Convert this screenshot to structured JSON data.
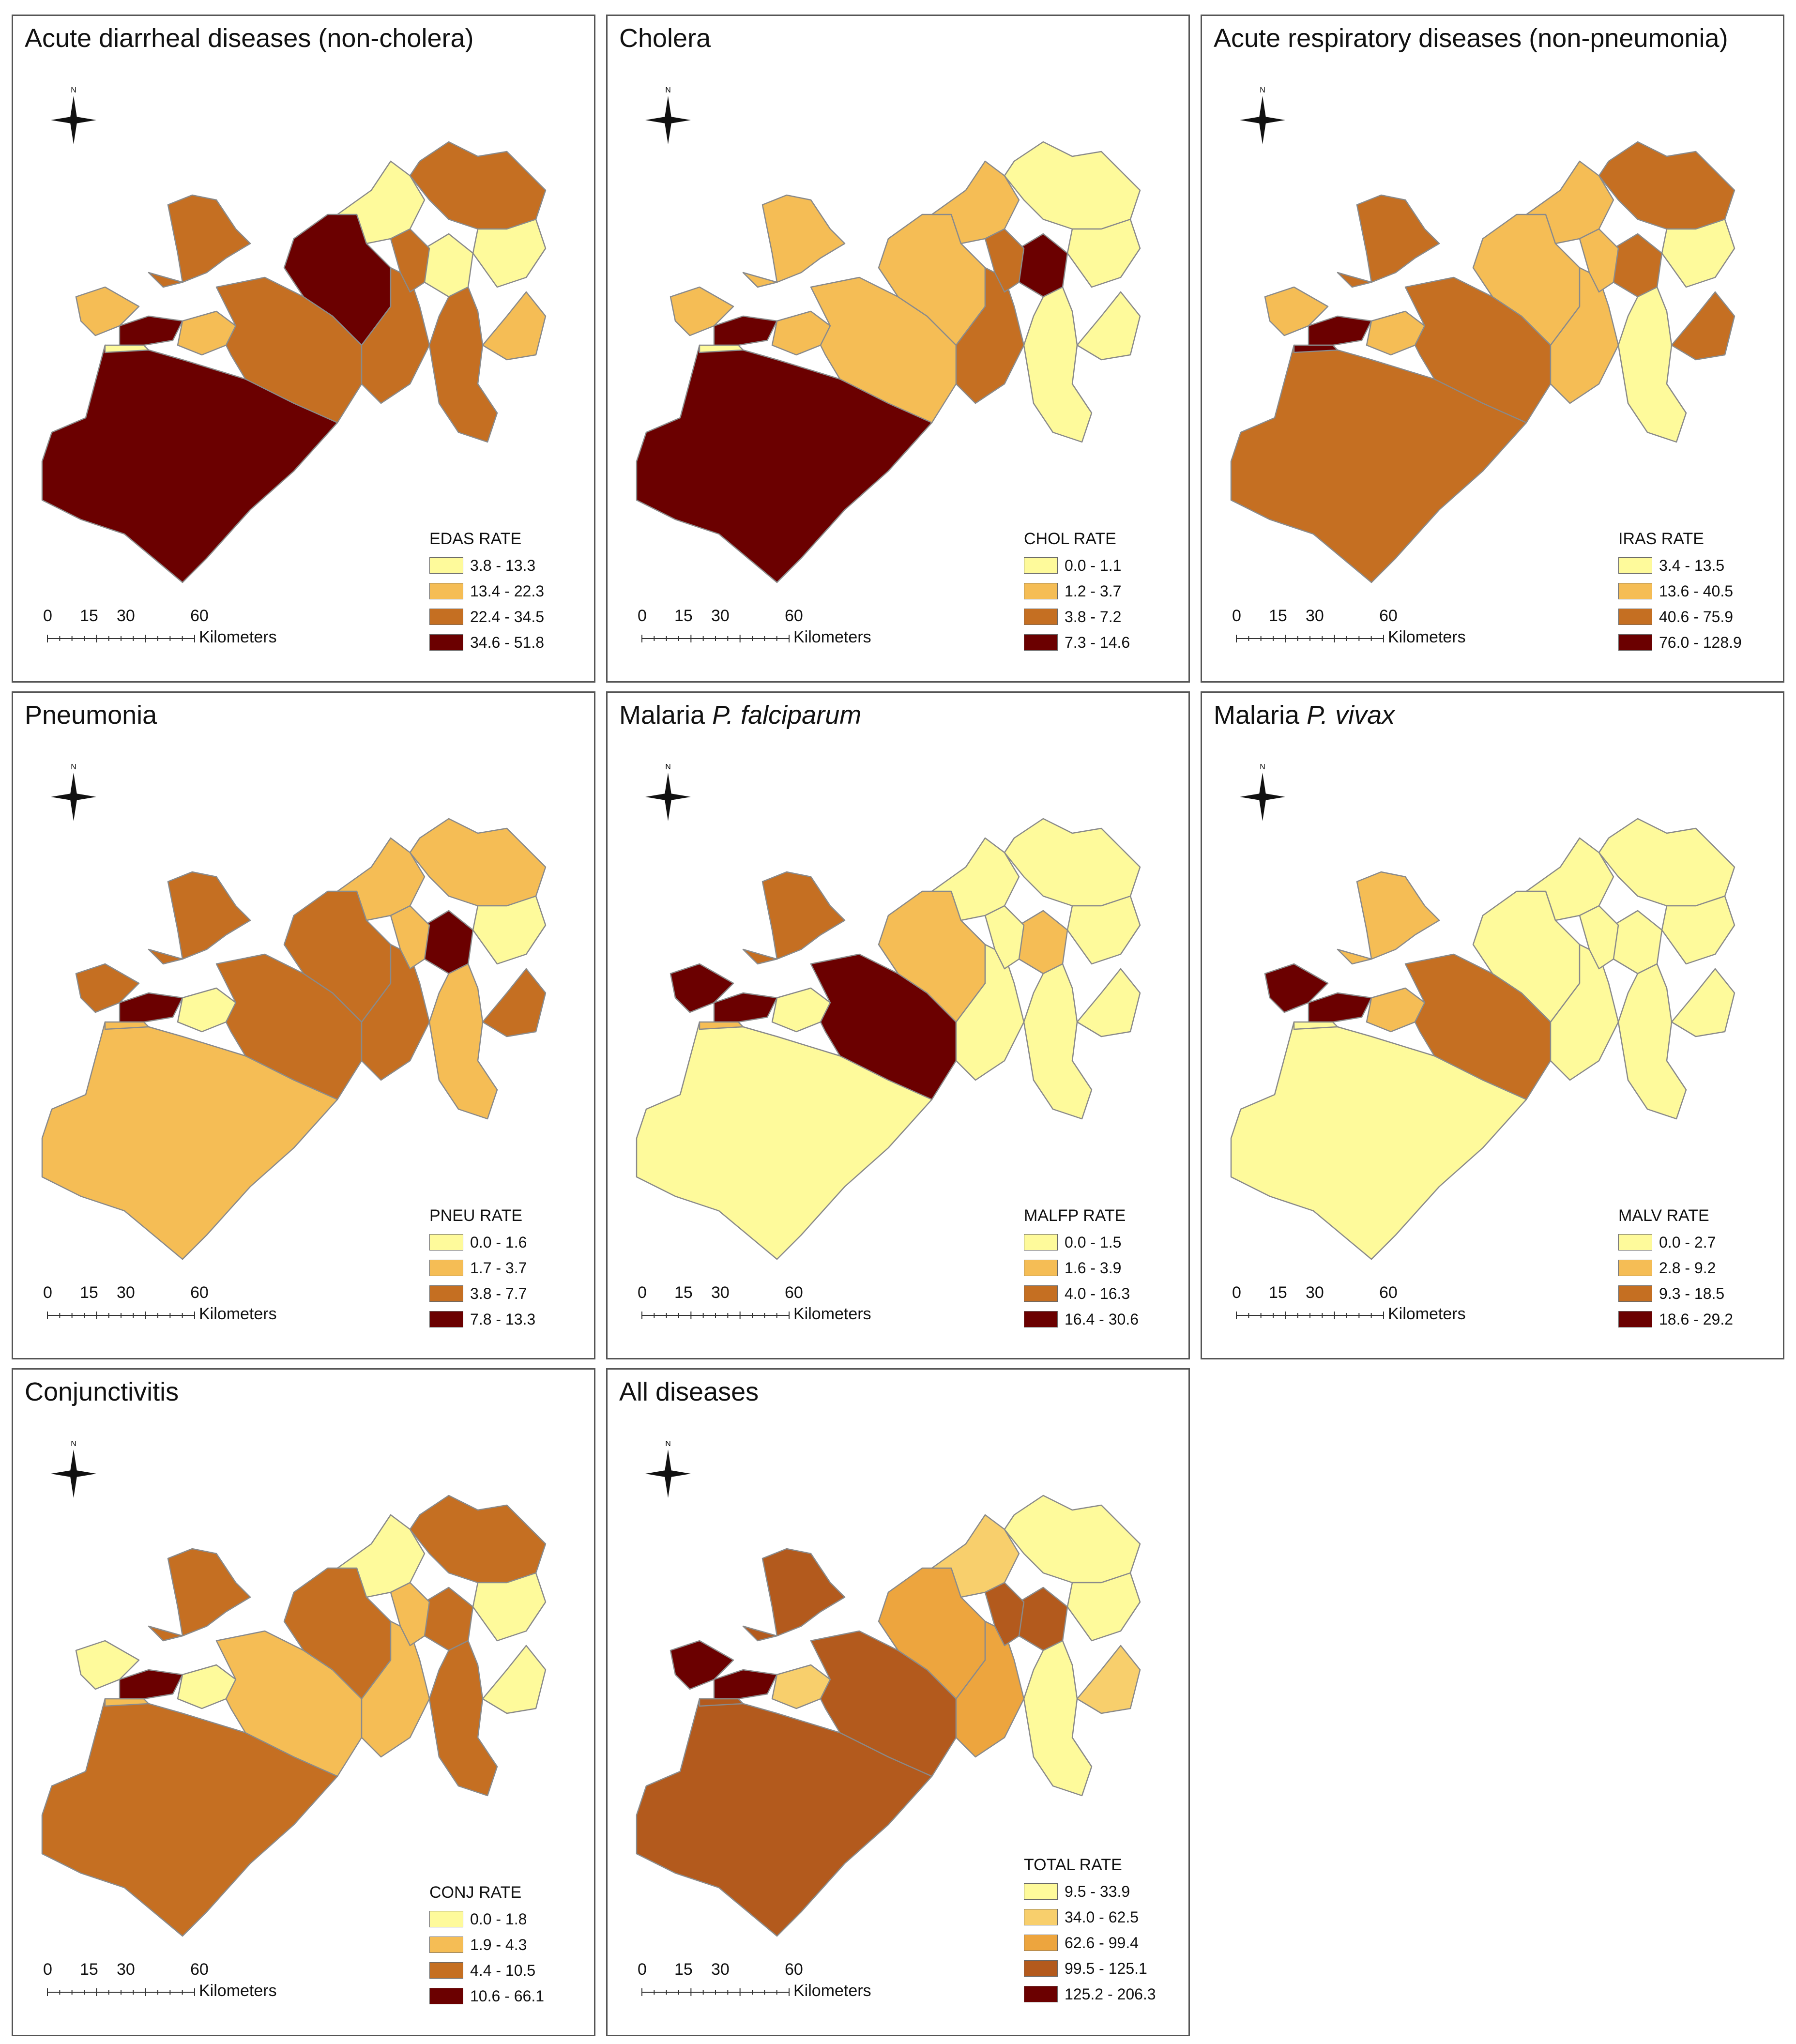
{
  "scale_bar": {
    "ticks": [
      "0",
      "15",
      "30",
      "60"
    ],
    "unit": "Kilometers"
  },
  "north_arrow": {
    "icon": "north-arrow-icon",
    "letter": "N"
  },
  "panels": [
    {
      "title": "Acute diarrheal diseases (non-cholera)",
      "title_italic": "",
      "legend_title": "EDAS RATE",
      "classes": [
        {
          "label": "3.8 - 13.3",
          "color": "#fefa9b"
        },
        {
          "label": "13.4 - 22.3",
          "color": "#f5bd55"
        },
        {
          "label": "22.4 - 34.5",
          "color": "#c56f22"
        },
        {
          "label": "34.6 - 51.8",
          "color": "#6b0000"
        }
      ],
      "region_classes": [
        3,
        1,
        2,
        3,
        1,
        0,
        2,
        3,
        2,
        0,
        2,
        0,
        2,
        0,
        1,
        2
      ]
    },
    {
      "title": "Cholera",
      "title_italic": "",
      "legend_title": "CHOL RATE",
      "classes": [
        {
          "label": "0.0 - 1.1",
          "color": "#fefa9b"
        },
        {
          "label": "1.2 - 3.7",
          "color": "#f5bd55"
        },
        {
          "label": "3.8 - 7.2",
          "color": "#c56f22"
        },
        {
          "label": "7.3 - 14.6",
          "color": "#6b0000"
        }
      ],
      "region_classes": [
        3,
        1,
        1,
        3,
        1,
        0,
        1,
        1,
        2,
        1,
        0,
        3,
        0,
        0,
        0,
        2
      ]
    },
    {
      "title": "Acute respiratory diseases (non-pneumonia)",
      "title_italic": "",
      "legend_title": "IRAS RATE",
      "classes": [
        {
          "label": "3.4 - 13.5",
          "color": "#fefa9b"
        },
        {
          "label": "13.6 - 40.5",
          "color": "#f5bd55"
        },
        {
          "label": "40.6 - 75.9",
          "color": "#c56f22"
        },
        {
          "label": "76.0 - 128.9",
          "color": "#6b0000"
        }
      ],
      "region_classes": [
        2,
        1,
        2,
        3,
        1,
        3,
        2,
        1,
        1,
        1,
        2,
        2,
        0,
        0,
        2,
        1
      ]
    },
    {
      "title": "Pneumonia",
      "title_italic": "",
      "legend_title": "PNEU RATE",
      "classes": [
        {
          "label": "0.0 - 1.6",
          "color": "#fefa9b"
        },
        {
          "label": "1.7 - 3.7",
          "color": "#f5bd55"
        },
        {
          "label": "3.8 - 7.7",
          "color": "#c56f22"
        },
        {
          "label": "7.8 - 13.3",
          "color": "#6b0000"
        }
      ],
      "region_classes": [
        1,
        2,
        2,
        3,
        0,
        1,
        2,
        2,
        2,
        1,
        1,
        3,
        1,
        0,
        2,
        1
      ]
    },
    {
      "title": "Malaria ",
      "title_italic": "P. falciparum",
      "legend_title": "MALFP RATE",
      "classes": [
        {
          "label": "0.0 - 1.5",
          "color": "#fefa9b"
        },
        {
          "label": "1.6 - 3.9",
          "color": "#f5bd55"
        },
        {
          "label": "4.0 - 16.3",
          "color": "#c56f22"
        },
        {
          "label": "16.4 - 30.6",
          "color": "#6b0000"
        }
      ],
      "region_classes": [
        0,
        3,
        2,
        3,
        0,
        1,
        3,
        1,
        0,
        0,
        0,
        1,
        0,
        0,
        0,
        0
      ]
    },
    {
      "title": "Malaria ",
      "title_italic": "P. vivax",
      "legend_title": "MALV RATE",
      "classes": [
        {
          "label": "0.0 - 2.7",
          "color": "#fefa9b"
        },
        {
          "label": "2.8 - 9.2",
          "color": "#f5bd55"
        },
        {
          "label": "9.3 - 18.5",
          "color": "#c56f22"
        },
        {
          "label": "18.6 - 29.2",
          "color": "#6b0000"
        }
      ],
      "region_classes": [
        0,
        3,
        1,
        3,
        1,
        0,
        2,
        0,
        0,
        0,
        0,
        0,
        0,
        0,
        0,
        0
      ]
    },
    {
      "title": "Conjunctivitis",
      "title_italic": "",
      "legend_title": "CONJ RATE",
      "classes": [
        {
          "label": "0.0 - 1.8",
          "color": "#fefa9b"
        },
        {
          "label": "1.9 - 4.3",
          "color": "#f5bd55"
        },
        {
          "label": "4.4 - 10.5",
          "color": "#c56f22"
        },
        {
          "label": "10.6 - 66.1",
          "color": "#6b0000"
        }
      ],
      "region_classes": [
        2,
        0,
        2,
        3,
        0,
        1,
        1,
        2,
        1,
        0,
        2,
        2,
        2,
        0,
        0,
        1
      ]
    },
    {
      "title": "All diseases",
      "title_italic": "",
      "legend_title": "TOTAL RATE",
      "classes": [
        {
          "label": "9.5 - 33.9",
          "color": "#fefa9b"
        },
        {
          "label": "34.0 - 62.5",
          "color": "#f8cf6c"
        },
        {
          "label": "62.6 - 99.4",
          "color": "#eda53e"
        },
        {
          "label": "99.5 - 125.1",
          "color": "#b35a1d"
        },
        {
          "label": "125.2 - 206.3",
          "color": "#6b0000"
        }
      ],
      "region_classes": [
        3,
        4,
        3,
        4,
        1,
        3,
        3,
        2,
        2,
        1,
        0,
        3,
        0,
        0,
        1,
        3
      ]
    }
  ]
}
